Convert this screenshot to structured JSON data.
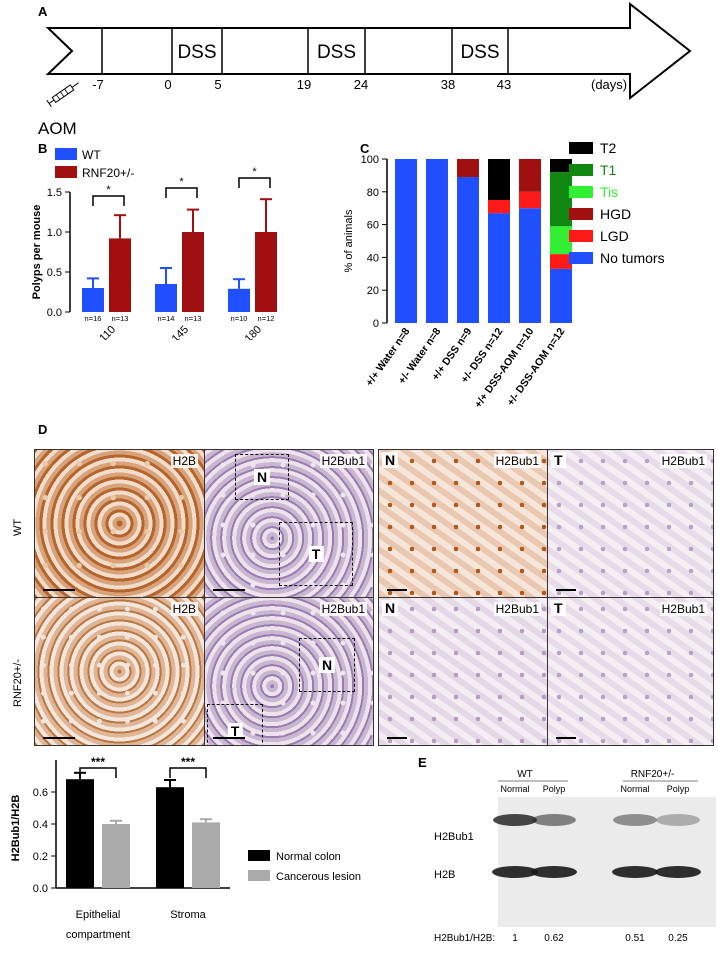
{
  "panels": {
    "a": "A",
    "b": "B",
    "c": "C",
    "d": "D",
    "e": "E"
  },
  "timeline": {
    "marks": [
      {
        "day": -7,
        "label": "-7"
      },
      {
        "day": 0,
        "label": "0"
      },
      {
        "day": 5,
        "label": "5"
      },
      {
        "day": 19,
        "label": "19"
      },
      {
        "day": 24,
        "label": "24"
      },
      {
        "day": 38,
        "label": "38"
      },
      {
        "day": 43,
        "label": "43"
      }
    ],
    "dss_periods": [
      {
        "start": 0,
        "end": 5,
        "label": "DSS"
      },
      {
        "start": 19,
        "end": 24,
        "label": "DSS"
      },
      {
        "start": 38,
        "end": 43,
        "label": "DSS"
      }
    ],
    "unit": "(days)",
    "injection": "AOM"
  },
  "chart_data": [
    {
      "id": "B",
      "type": "bar",
      "ylabel": "Polyps per mouse",
      "ylim": [
        0,
        1.5
      ],
      "yticks": [
        "0.0",
        "0.5",
        "1.0",
        "1.5"
      ],
      "categories": [
        "Day 110",
        "Day 145",
        "Day 180"
      ],
      "series": [
        {
          "name": "WT",
          "color": "#1f4fff",
          "values": [
            0.3,
            0.35,
            0.29
          ],
          "err": [
            0.12,
            0.2,
            0.12
          ],
          "n": [
            "n=16",
            "n=14",
            "n=10"
          ]
        },
        {
          "name": "RNF20+/-",
          "color": "#a01010",
          "values": [
            0.92,
            1.0,
            1.0
          ],
          "err": [
            0.29,
            0.28,
            0.41
          ],
          "n": [
            "n=13",
            "n=13",
            "n=12"
          ]
        }
      ],
      "significance": [
        "*",
        "*",
        "*"
      ],
      "legend_position": "top-left"
    },
    {
      "id": "C",
      "type": "bar",
      "stacked": true,
      "ylabel": "% of animals",
      "ylim": [
        0,
        100
      ],
      "yticks": [
        "0",
        "20",
        "40",
        "60",
        "80",
        "100"
      ],
      "categories": [
        "+/+ Water n=8",
        "+/- Water n=8",
        "+/+ DSS n=9",
        "+/- DSS n=12",
        "+/+ DSS-AOM n=10",
        "+/- DSS-AOM n=12"
      ],
      "series": [
        {
          "name": "No tumors",
          "color": "#1f4fff",
          "values": [
            100,
            100,
            89,
            67,
            70,
            33
          ]
        },
        {
          "name": "LGD",
          "color": "#ff1a1a",
          "values": [
            0,
            0,
            0,
            8,
            10,
            9
          ]
        },
        {
          "name": "HGD",
          "color": "#a01010",
          "values": [
            0,
            0,
            11,
            0,
            20,
            0
          ]
        },
        {
          "name": "Tis",
          "color": "#33ee33",
          "values": [
            0,
            0,
            0,
            0,
            0,
            17
          ]
        },
        {
          "name": "T1",
          "color": "#118811",
          "values": [
            0,
            0,
            0,
            0,
            0,
            33
          ]
        },
        {
          "name": "T2",
          "color": "#000000",
          "values": [
            0,
            0,
            0,
            25,
            0,
            8
          ]
        }
      ],
      "legend_order": [
        "T2",
        "T1",
        "Tis",
        "HGD",
        "LGD",
        "No tumors"
      ],
      "legend_text_colors": {
        "T2": "#000000",
        "T1": "#118811",
        "Tis": "#33ee33",
        "HGD": "#000000",
        "LGD": "#000000",
        "No tumors": "#000000"
      },
      "legend_position": "right"
    },
    {
      "id": "D-quant",
      "type": "bar",
      "ylabel": "H2Bub1/H2B",
      "ylim": [
        0,
        0.8
      ],
      "yticks": [
        "0.0",
        "0.2",
        "0.4",
        "0.6"
      ],
      "categories": [
        "Epithelial compartment",
        "Stroma"
      ],
      "category_lines": [
        [
          "Epithelial",
          "compartment"
        ],
        [
          "Stroma"
        ]
      ],
      "series": [
        {
          "name": "Normal colon",
          "color": "#000000",
          "values": [
            0.68,
            0.63
          ],
          "err": [
            0.04,
            0.045
          ]
        },
        {
          "name": "Cancerous lesion",
          "color": "#aaaaaa",
          "values": [
            0.4,
            0.41
          ],
          "err": [
            0.02,
            0.02
          ]
        }
      ],
      "significance": [
        "***",
        "***"
      ],
      "legend_position": "right"
    }
  ],
  "micrographs": {
    "row_labels": [
      "WT",
      "RNF20+/-"
    ],
    "tiles": [
      {
        "label": "H2B"
      },
      {
        "label": "H2Bub1",
        "rois": [
          "N",
          "T"
        ]
      },
      {
        "label": "H2Bub1",
        "corner": "N"
      },
      {
        "label": "H2Bub1",
        "corner": "T"
      },
      {
        "label": "H2B"
      },
      {
        "label": "H2Bub1",
        "rois": [
          "T",
          "N"
        ]
      },
      {
        "label": "H2Bub1",
        "corner": "N"
      },
      {
        "label": "H2Bub1",
        "corner": "T"
      }
    ]
  },
  "western": {
    "groups": [
      {
        "name": "WT",
        "lanes": [
          "Normal",
          "Polyp"
        ]
      },
      {
        "name": "RNF20+/-",
        "lanes": [
          "Normal",
          "Polyp"
        ]
      }
    ],
    "bands": [
      "H2Bub1",
      "H2B"
    ],
    "ratio_label": "H2Bub1/H2B:",
    "ratios": [
      "1",
      "0.62",
      "0.51",
      "0.25"
    ]
  }
}
